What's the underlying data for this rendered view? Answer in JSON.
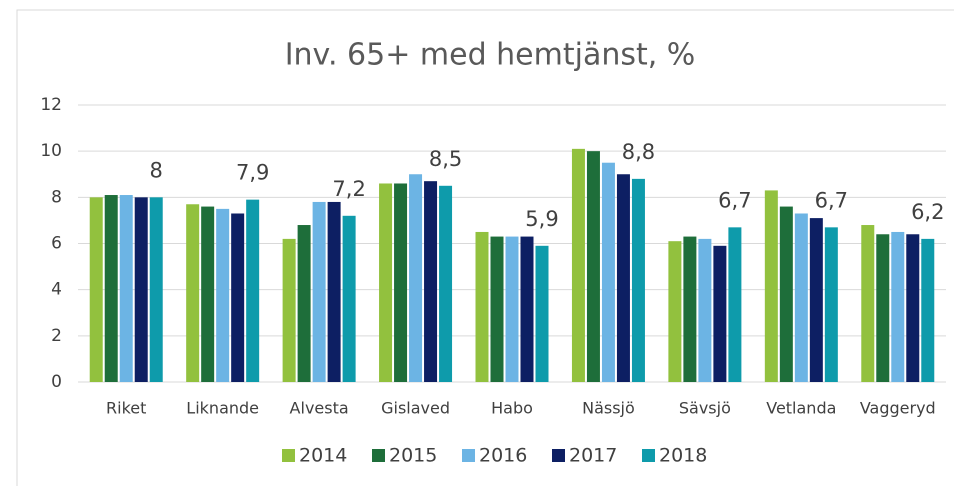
{
  "chart_data": {
    "type": "bar",
    "title": "Inv. 65+ med hemtjänst, %",
    "categories": [
      "Riket",
      "Liknande",
      "Alvesta",
      "Gislaved",
      "Habo",
      "Nässjö",
      "Sävsjö",
      "Vetlanda",
      "Vaggeryd"
    ],
    "series": [
      {
        "name": "2014",
        "color": "#92c13e",
        "values": [
          8.0,
          7.7,
          6.2,
          8.6,
          6.5,
          10.1,
          6.1,
          8.3,
          6.8
        ]
      },
      {
        "name": "2015",
        "color": "#1e6e3a",
        "values": [
          8.1,
          7.6,
          6.8,
          8.6,
          6.3,
          10.0,
          6.3,
          7.6,
          6.4
        ]
      },
      {
        "name": "2016",
        "color": "#6cb4e4",
        "values": [
          8.1,
          7.5,
          7.8,
          9.0,
          6.3,
          9.5,
          6.2,
          7.3,
          6.5
        ]
      },
      {
        "name": "2017",
        "color": "#0d1f63",
        "values": [
          8.0,
          7.3,
          7.8,
          8.7,
          6.3,
          9.0,
          5.9,
          7.1,
          6.4
        ]
      },
      {
        "name": "2018",
        "color": "#0e9bab",
        "values": [
          8,
          7.9,
          7.2,
          8.5,
          5.9,
          8.8,
          6.7,
          6.7,
          6.2
        ],
        "value_labels": [
          "8",
          "7,9",
          "7,2",
          "8,5",
          "5,9",
          "8,8",
          "6,7",
          "6,7",
          "6,2"
        ]
      }
    ],
    "ylim": [
      0,
      12
    ],
    "yticks": [
      0,
      2,
      4,
      6,
      8,
      10,
      12
    ],
    "grid": true,
    "legend": "bottom"
  }
}
